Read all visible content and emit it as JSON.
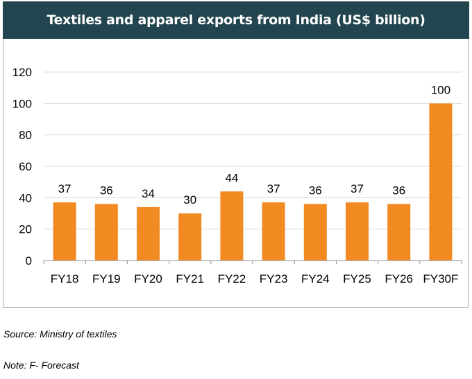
{
  "header": {
    "title": "Textiles and apparel exports from India (US$ billion)"
  },
  "chart_data": {
    "type": "bar",
    "title": "Textiles and apparel exports from India (US$ billion)",
    "categories": [
      "FY18",
      "FY19",
      "FY20",
      "FY21",
      "FY22",
      "FY23",
      "FY24",
      "FY25",
      "FY26",
      "FY30F"
    ],
    "values": [
      37,
      36,
      34,
      30,
      44,
      37,
      36,
      37,
      36,
      100
    ],
    "yticks": [
      0,
      20,
      40,
      60,
      80,
      100,
      120
    ],
    "ylim": [
      0,
      120
    ],
    "xlabel": "",
    "ylabel": "",
    "grid": true,
    "legend": "none",
    "bar_color": "#f28a22",
    "grid_color": "#d9d9d9"
  },
  "footer": {
    "source": "Source: Ministry of textiles",
    "note": "Note: F- Forecast"
  }
}
